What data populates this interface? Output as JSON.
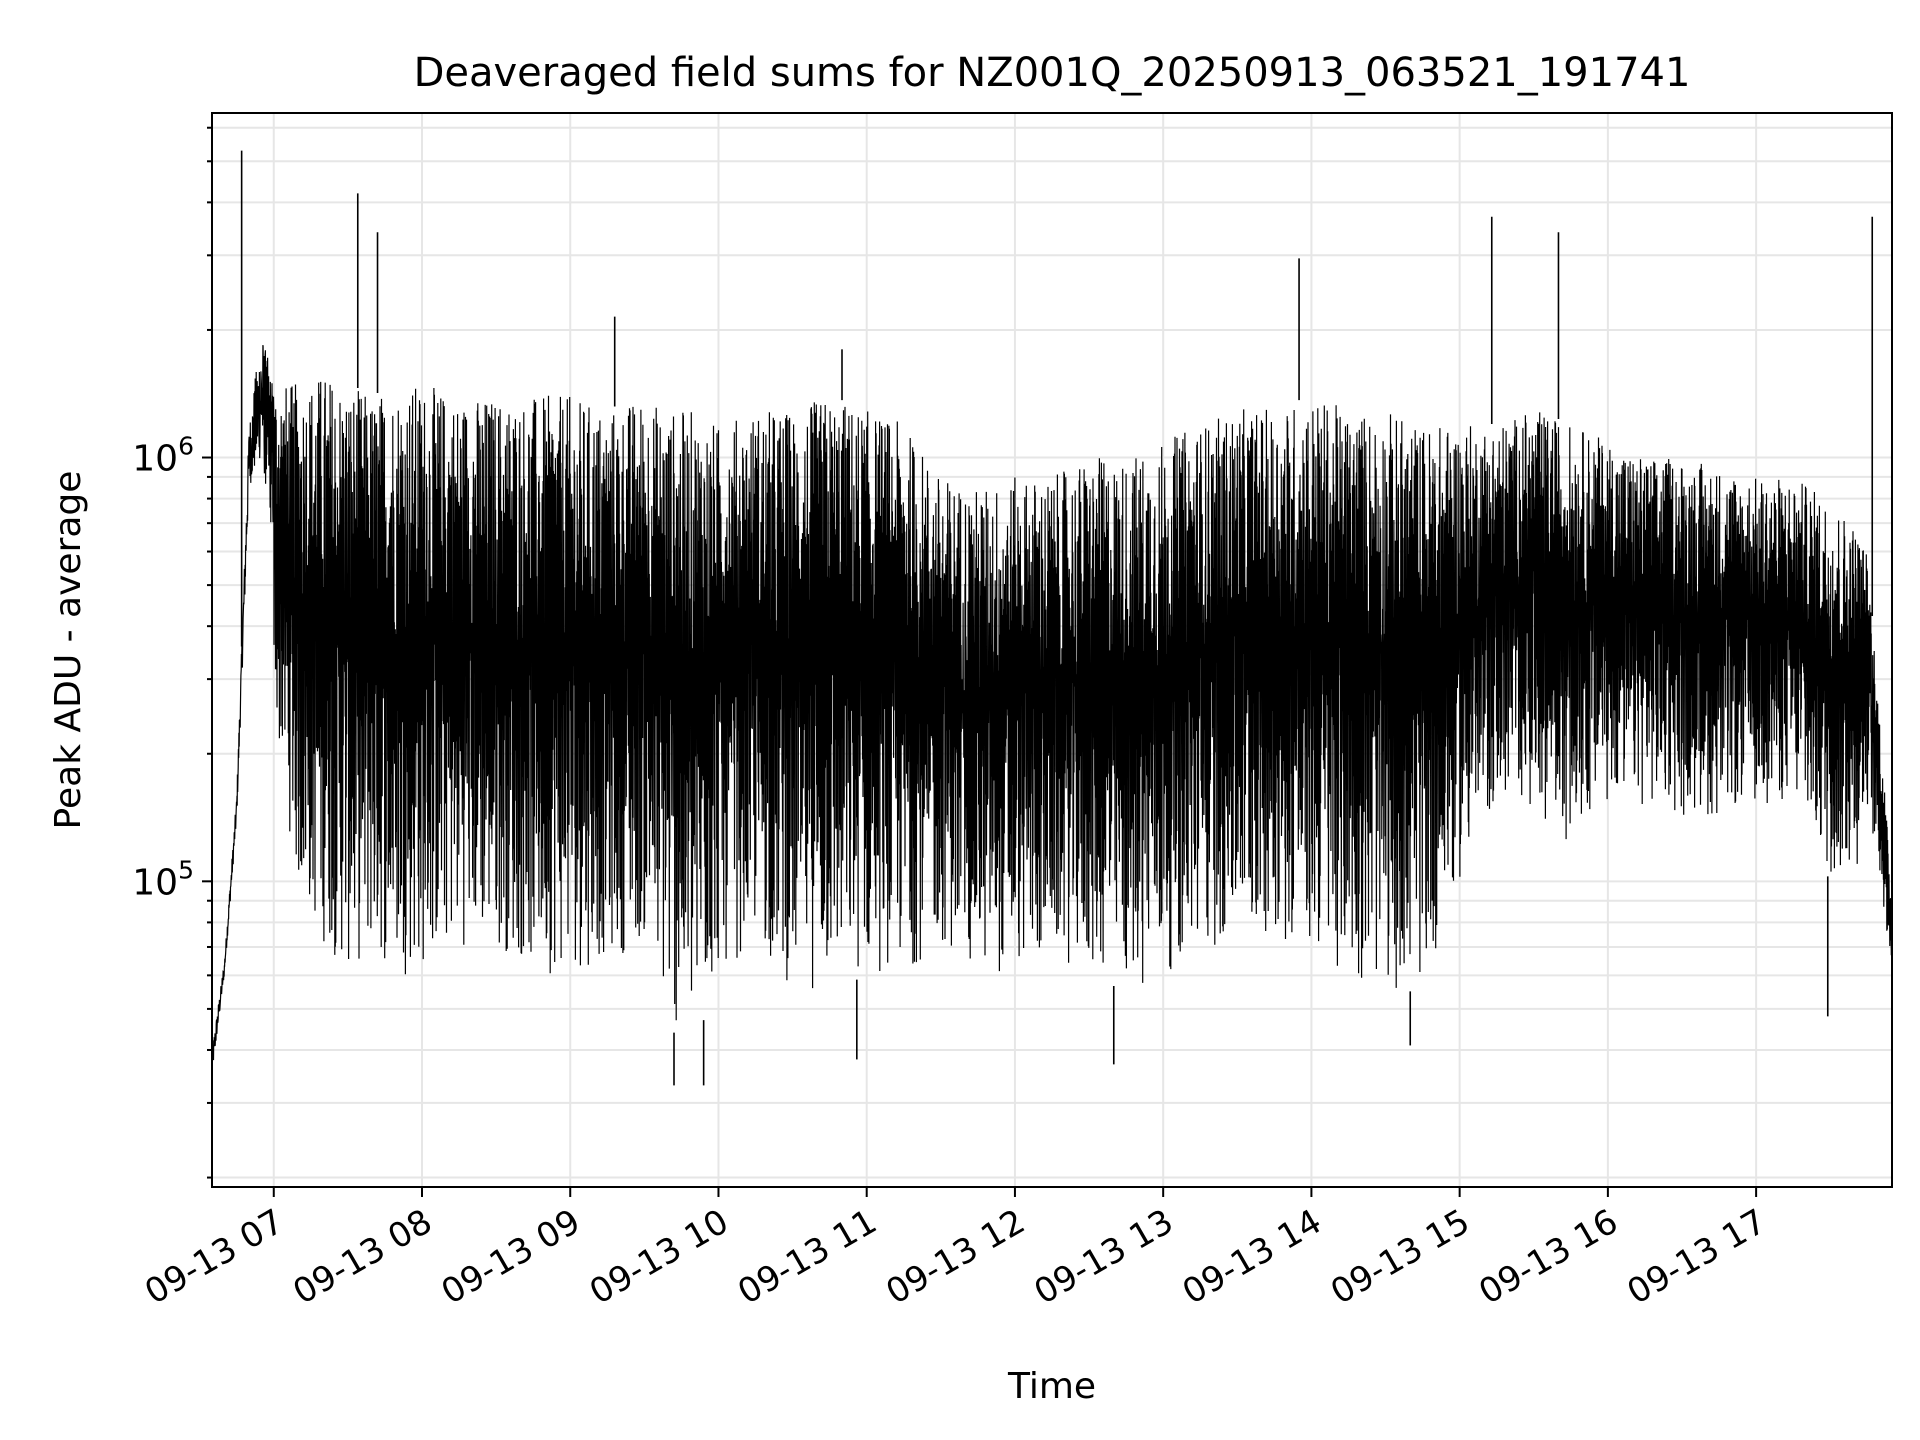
{
  "chart_data": {
    "type": "line",
    "title": "Deaveraged field sums for NZ001Q_20250913_063521_191741",
    "xlabel": "Time",
    "ylabel": "Peak ADU - average",
    "x_start": "2025-09-13 06:35",
    "x_end": "2025-09-13 17:55",
    "xlim": [
      "2025-09-13 06:35",
      "2025-09-13 17:55"
    ],
    "x_ticks": [
      "09-13 07",
      "09-13 08",
      "09-13 09",
      "09-13 10",
      "09-13 11",
      "09-13 12",
      "09-13 13",
      "09-13 14",
      "09-13 15",
      "09-13 16",
      "09-13 17"
    ],
    "y_scale": "log",
    "ylim": [
      19000,
      6500000
    ],
    "y_ticks": [
      {
        "value": 100000,
        "base": "10",
        "exp": "5"
      },
      {
        "value": 1000000,
        "base": "10",
        "exp": "6"
      }
    ],
    "grid": true,
    "line_color": "#000000",
    "grid_color": "#e6e6e6",
    "series": [
      {
        "x": [
          "2025-09-13 06:35",
          "2025-09-13 06:40",
          "2025-09-13 06:45",
          "2025-09-13 06:50",
          "2025-09-13 06:55",
          "2025-09-13 07:00",
          "2025-09-13 07:10",
          "2025-09-13 07:20",
          "2025-09-13 07:30",
          "2025-09-13 07:40",
          "2025-09-13 07:50",
          "2025-09-13 08:00",
          "2025-09-13 08:15",
          "2025-09-13 08:30",
          "2025-09-13 08:45",
          "2025-09-13 09:00",
          "2025-09-13 09:15",
          "2025-09-13 09:30",
          "2025-09-13 09:40",
          "2025-09-13 09:50",
          "2025-09-13 10:00",
          "2025-09-13 10:15",
          "2025-09-13 10:30",
          "2025-09-13 10:45",
          "2025-09-13 11:00",
          "2025-09-13 11:15",
          "2025-09-13 11:30",
          "2025-09-13 11:45",
          "2025-09-13 12:00",
          "2025-09-13 12:15",
          "2025-09-13 12:30",
          "2025-09-13 12:45",
          "2025-09-13 13:00",
          "2025-09-13 13:15",
          "2025-09-13 13:30",
          "2025-09-13 13:45",
          "2025-09-13 14:00",
          "2025-09-13 14:15",
          "2025-09-13 14:30",
          "2025-09-13 14:45",
          "2025-09-13 15:00",
          "2025-09-13 15:15",
          "2025-09-13 15:30",
          "2025-09-13 15:45",
          "2025-09-13 16:00",
          "2025-09-13 16:15",
          "2025-09-13 16:30",
          "2025-09-13 16:45",
          "2025-09-13 17:00",
          "2025-09-13 17:15",
          "2025-09-13 17:30",
          "2025-09-13 17:40",
          "2025-09-13 17:45",
          "2025-09-13 17:50",
          "2025-09-13 17:55"
        ],
        "upper": [
          40000,
          65000,
          160000,
          1200000,
          2000000,
          1500000,
          1500000,
          1600000,
          1500000,
          1400000,
          1500000,
          1500000,
          1400000,
          1400000,
          1400000,
          1400000,
          1300000,
          1400000,
          1300000,
          1300000,
          1200000,
          1300000,
          1300000,
          1400000,
          1300000,
          1200000,
          900000,
          850000,
          900000,
          900000,
          1000000,
          1000000,
          1100000,
          1200000,
          1300000,
          1300000,
          1400000,
          1300000,
          1300000,
          1200000,
          1200000,
          1200000,
          1300000,
          1200000,
          1100000,
          1000000,
          1000000,
          950000,
          900000,
          900000,
          800000,
          700000,
          600000,
          250000,
          90000
        ],
        "lower": [
          30000,
          55000,
          120000,
          600000,
          500000,
          250000,
          90000,
          70000,
          60000,
          65000,
          60000,
          60000,
          70000,
          70000,
          60000,
          60000,
          65000,
          70000,
          45000,
          40000,
          60000,
          70000,
          55000,
          55000,
          60000,
          60000,
          70000,
          60000,
          60000,
          65000,
          60000,
          55000,
          60000,
          65000,
          70000,
          75000,
          65000,
          60000,
          55000,
          55000,
          100000,
          150000,
          150000,
          120000,
          150000,
          150000,
          140000,
          140000,
          150000,
          150000,
          100000,
          100000,
          150000,
          100000,
          60000
        ],
        "peaks": [
          {
            "x": "2025-09-13 06:47",
            "y": 5300000
          },
          {
            "x": "2025-09-13 07:34",
            "y": 4200000
          },
          {
            "x": "2025-09-13 07:42",
            "y": 3400000
          },
          {
            "x": "2025-09-13 09:18",
            "y": 2150000
          },
          {
            "x": "2025-09-13 10:50",
            "y": 1800000
          },
          {
            "x": "2025-09-13 13:55",
            "y": 2950000
          },
          {
            "x": "2025-09-13 15:13",
            "y": 3700000
          },
          {
            "x": "2025-09-13 15:40",
            "y": 3400000
          },
          {
            "x": "2025-09-13 17:47",
            "y": 3700000
          }
        ],
        "troughs": [
          {
            "x": "2025-09-13 09:42",
            "y": 33000
          },
          {
            "x": "2025-09-13 09:54",
            "y": 33000
          },
          {
            "x": "2025-09-13 10:56",
            "y": 38000
          },
          {
            "x": "2025-09-13 12:40",
            "y": 37000
          },
          {
            "x": "2025-09-13 14:40",
            "y": 41000
          },
          {
            "x": "2025-09-13 17:29",
            "y": 48000
          }
        ]
      }
    ]
  }
}
